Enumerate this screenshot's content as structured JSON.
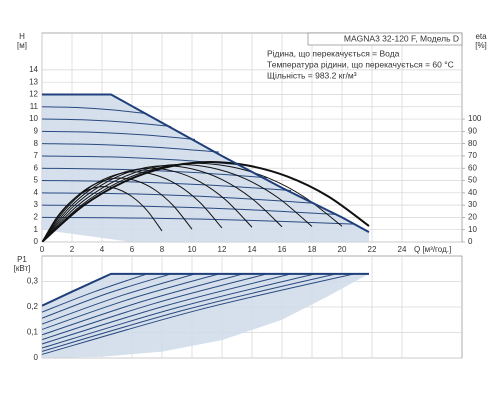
{
  "chart_data": [
    {
      "type": "line",
      "title": "MAGNA3 32-120 F, Модель D",
      "annotations": [
        "Рідина, що перекачується = Вода",
        "Температура рідини, що перекачується = 60 °C",
        "Щільність = 983.2 кг/м³"
      ],
      "ylabel": [
        "H",
        "[м]"
      ],
      "y2label": [
        "eta",
        "[%]"
      ],
      "xlabel": "Q [м³/год.]",
      "xlim": [
        0,
        28
      ],
      "ylim": [
        0,
        17
      ],
      "y2lim": [
        0,
        170
      ],
      "xticks": [
        0,
        2,
        4,
        6,
        8,
        10,
        12,
        14,
        16,
        18,
        20,
        22,
        24
      ],
      "yticks": [
        0,
        1,
        2,
        3,
        4,
        5,
        6,
        7,
        8,
        9,
        10,
        11,
        12,
        13,
        14
      ],
      "y2ticks": [
        0,
        10,
        20,
        30,
        40,
        50,
        60,
        70,
        80,
        90,
        100
      ],
      "grid": true,
      "band": {
        "color": "#cfdbea",
        "line_color": "#1f3f7a",
        "line_width": 2,
        "upper": {
          "x": [
            0,
            4.6,
            8,
            12,
            16,
            20,
            21.8
          ],
          "values": [
            12,
            12,
            9.7,
            7,
            4.4,
            2,
            0.8
          ]
        },
        "lower": {
          "x": [
            0,
            3,
            6,
            21.8
          ],
          "values": [
            1,
            0.5,
            0,
            0
          ]
        }
      },
      "series": [
        {
          "color": "#2a4b80",
          "line_width": 1,
          "x": [
            0,
            2.33,
            4.67,
            7
          ],
          "values": [
            11,
            10.94,
            10.75,
            10.44
          ]
        },
        {
          "color": "#2a4b80",
          "line_width": 1,
          "x": [
            0,
            2.87,
            5.73,
            8.6
          ],
          "values": [
            10,
            9.93,
            9.73,
            9.4
          ]
        },
        {
          "color": "#2a4b80",
          "line_width": 1,
          "x": [
            0,
            3.4,
            6.8,
            10.2
          ],
          "values": [
            9,
            8.93,
            8.71,
            8.35
          ]
        },
        {
          "color": "#2a4b80",
          "line_width": 1,
          "x": [
            0,
            3.93,
            7.87,
            11.8
          ],
          "values": [
            8,
            7.92,
            7.69,
            7.31
          ]
        },
        {
          "color": "#2a4b80",
          "line_width": 1,
          "x": [
            0,
            4.47,
            8.93,
            13.4
          ],
          "values": [
            7,
            6.92,
            6.68,
            6.27
          ]
        },
        {
          "color": "#2a4b80",
          "line_width": 1,
          "x": [
            0,
            5,
            10,
            15
          ],
          "values": [
            6,
            5.91,
            5.66,
            5.23
          ]
        },
        {
          "color": "#2a4b80",
          "line_width": 1,
          "x": [
            0,
            5.53,
            11.07,
            16.6
          ],
          "values": [
            5,
            4.91,
            4.64,
            4.19
          ]
        },
        {
          "color": "#2a4b80",
          "line_width": 1,
          "x": [
            0,
            6.07,
            12.13,
            18.2
          ],
          "values": [
            4,
            3.91,
            3.62,
            3.15
          ]
        },
        {
          "color": "#2a4b80",
          "line_width": 1,
          "x": [
            0,
            6.53,
            13.07,
            19.6
          ],
          "values": [
            3,
            2.92,
            2.66,
            2.24
          ]
        },
        {
          "color": "#2a4b80",
          "line_width": 1,
          "x": [
            0,
            6.93,
            13.87,
            20.8
          ],
          "values": [
            2,
            1.94,
            1.76,
            1.45
          ]
        },
        {
          "color": "#111111",
          "line_width": 1,
          "axis": "y2",
          "x": [
            0,
            1,
            2,
            3,
            4,
            5,
            6,
            7,
            8
          ],
          "values": [
            0,
            20.3,
            33.8,
            41.9,
            45,
            43.2,
            36.9,
            25.7,
            9
          ]
        },
        {
          "color": "#111111",
          "line_width": 1,
          "axis": "y2",
          "x": [
            0,
            1.25,
            2.5,
            3.75,
            5,
            6.25,
            7.5,
            8.75,
            10
          ],
          "values": [
            0,
            23.4,
            39,
            48.4,
            52,
            49.9,
            42.6,
            29.6,
            10.4
          ]
        },
        {
          "color": "#111111",
          "line_width": 1,
          "axis": "y2",
          "x": [
            0,
            1.5,
            3,
            4.5,
            6,
            7.5,
            9,
            10.5,
            12
          ],
          "values": [
            0,
            25.7,
            42.8,
            53,
            57,
            54.7,
            46.7,
            32.5,
            11.4
          ]
        },
        {
          "color": "#111111",
          "line_width": 1,
          "axis": "y2",
          "x": [
            0,
            1.75,
            3.5,
            5.25,
            7,
            8.75,
            10.5,
            12.25,
            14
          ],
          "values": [
            0,
            27,
            45,
            55.8,
            60,
            57.6,
            49.2,
            34.2,
            12
          ]
        },
        {
          "color": "#111111",
          "line_width": 1,
          "axis": "y2",
          "x": [
            0,
            2,
            4,
            6,
            8,
            10,
            12,
            14,
            16
          ],
          "values": [
            0,
            27.9,
            46.5,
            57.7,
            62,
            59.5,
            50.8,
            35.3,
            12.4
          ]
        },
        {
          "color": "#111111",
          "line_width": 1,
          "axis": "y2",
          "x": [
            0,
            2.25,
            4.5,
            6.75,
            9,
            11.25,
            13.5,
            15.75,
            18
          ],
          "values": [
            0,
            28.4,
            47.3,
            58.6,
            63,
            60.5,
            51.7,
            35.9,
            12.6
          ]
        },
        {
          "color": "#111111",
          "line_width": 1,
          "axis": "y2",
          "x": [
            0,
            2.5,
            5,
            7.5,
            10,
            12.5,
            15,
            17.5,
            20
          ],
          "values": [
            0,
            28.8,
            48,
            59.5,
            64,
            61.4,
            52.5,
            36.5,
            12.8
          ]
        },
        {
          "color": "#111111",
          "line_width": 2,
          "axis": "y2",
          "x": [
            0,
            2.73,
            5.45,
            8.18,
            10.9,
            13.63,
            16.35,
            19.08,
            21.8
          ],
          "values": [
            0,
            29.3,
            48.8,
            60.5,
            65,
            62.4,
            53.3,
            37.1,
            13
          ]
        }
      ]
    },
    {
      "type": "line",
      "ylabel": [
        "P1",
        "[кВт]"
      ],
      "xlim": [
        0,
        28
      ],
      "ylim": [
        0,
        0.4
      ],
      "yticks": [
        0,
        {
          "value": 0.1,
          "label": "0,1"
        },
        {
          "value": 0.2,
          "label": "0,2"
        },
        {
          "value": 0.3,
          "label": "0,3"
        }
      ],
      "grid": true,
      "band": {
        "color": "#cfdbea",
        "line_color": "#1f3f7a",
        "line_width": 2,
        "upper": {
          "x": [
            0,
            2,
            4.6,
            21.8
          ],
          "values": [
            0.205,
            0.26,
            0.33,
            0.33
          ]
        },
        "lower": {
          "x": [
            0,
            4,
            8,
            12,
            16,
            19,
            21.8
          ],
          "values": [
            0,
            0.005,
            0.025,
            0.07,
            0.15,
            0.24,
            0.33
          ]
        }
      },
      "series": [
        {
          "color": "#2a4b80",
          "line_width": 1,
          "x": [
            0,
            3.5,
            7
          ],
          "values": [
            0.18,
            0.26,
            0.33
          ]
        },
        {
          "color": "#2a4b80",
          "line_width": 1,
          "x": [
            0,
            4.3,
            8.6
          ],
          "values": [
            0.156,
            0.252,
            0.33
          ]
        },
        {
          "color": "#2a4b80",
          "line_width": 1,
          "x": [
            0,
            5.1,
            10.2
          ],
          "values": [
            0.133,
            0.241,
            0.33
          ]
        },
        {
          "color": "#2a4b80",
          "line_width": 1,
          "x": [
            0,
            5.9,
            11.8
          ],
          "values": [
            0.112,
            0.232,
            0.33
          ]
        },
        {
          "color": "#2a4b80",
          "line_width": 1,
          "x": [
            0,
            6.7,
            13.4
          ],
          "values": [
            0.091,
            0.222,
            0.33
          ]
        },
        {
          "color": "#2a4b80",
          "line_width": 1,
          "x": [
            0,
            7.5,
            15
          ],
          "values": [
            0.072,
            0.214,
            0.33
          ]
        },
        {
          "color": "#2a4b80",
          "line_width": 1,
          "x": [
            0,
            8.3,
            16.6
          ],
          "values": [
            0.055,
            0.206,
            0.33
          ]
        },
        {
          "color": "#2a4b80",
          "line_width": 1,
          "x": [
            0,
            9.1,
            18.2
          ],
          "values": [
            0.039,
            0.199,
            0.33
          ]
        },
        {
          "color": "#2a4b80",
          "line_width": 1,
          "x": [
            0,
            9.8,
            19.6
          ],
          "values": [
            0.026,
            0.193,
            0.33
          ]
        },
        {
          "color": "#2a4b80",
          "line_width": 1,
          "x": [
            0,
            10.4,
            20.8
          ],
          "values": [
            0.014,
            0.188,
            0.33
          ]
        }
      ]
    }
  ]
}
